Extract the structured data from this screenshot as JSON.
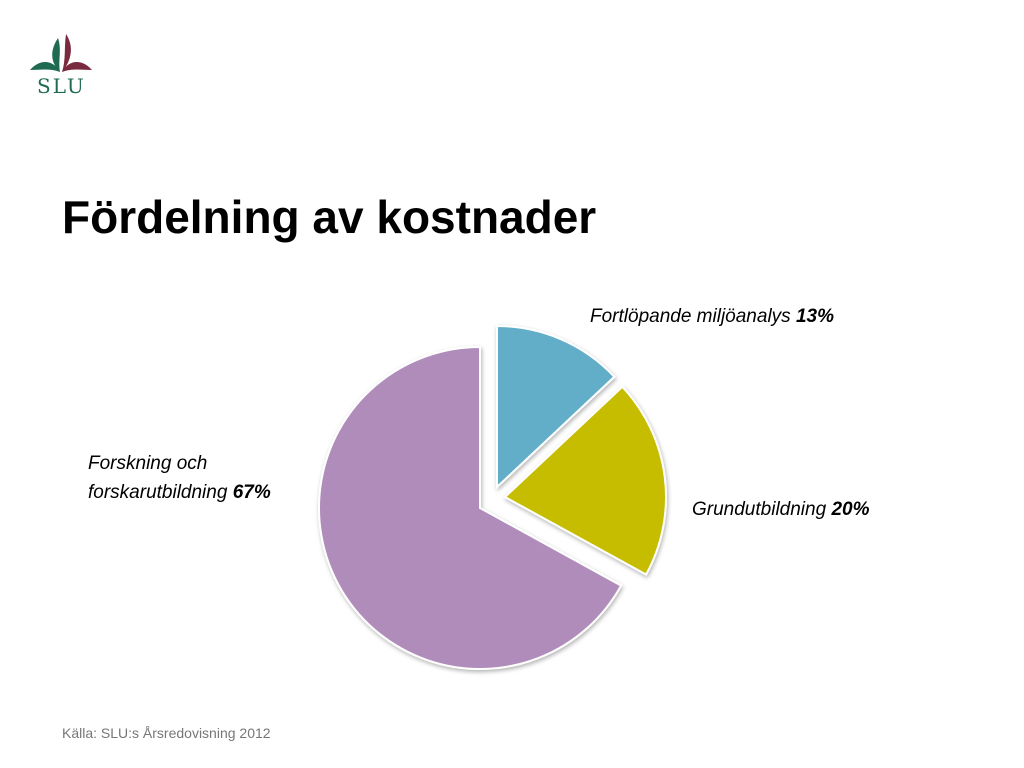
{
  "logo": {
    "text": "SLU"
  },
  "chart_data": {
    "type": "pie",
    "title": "Fördelning av kostnader",
    "categories": [
      "Fortlöpande miljöanalys",
      "Grundutbildning",
      "Forskning och forskarutbildning"
    ],
    "values": [
      13,
      20,
      67
    ],
    "value_labels": [
      "13%",
      "20%",
      "67%"
    ],
    "colors": [
      "#62aec8",
      "#c6bd00",
      "#b08cbb"
    ]
  },
  "source": "Källa: SLU:s Årsredovisning 2012"
}
